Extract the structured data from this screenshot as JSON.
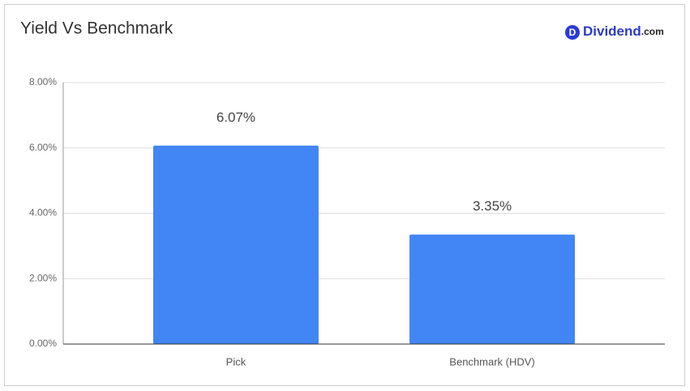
{
  "chart_data": {
    "type": "bar",
    "title": "Yield Vs Benchmark",
    "categories": [
      "Pick",
      "Benchmark (HDV)"
    ],
    "values": [
      6.07,
      3.35
    ],
    "value_labels": [
      "6.07%",
      "3.35%"
    ],
    "color": "#4285f4",
    "ylim": [
      0,
      8
    ],
    "yticks": [
      {
        "value": 0,
        "label": "0.00%"
      },
      {
        "value": 2,
        "label": "2.00%"
      },
      {
        "value": 4,
        "label": "4.00%"
      },
      {
        "value": 6,
        "label": "6.00%"
      },
      {
        "value": 8,
        "label": "8.00%"
      }
    ],
    "grid": true
  },
  "brand": {
    "icon": "D",
    "name": "Dividend",
    "suffix": ".com"
  }
}
